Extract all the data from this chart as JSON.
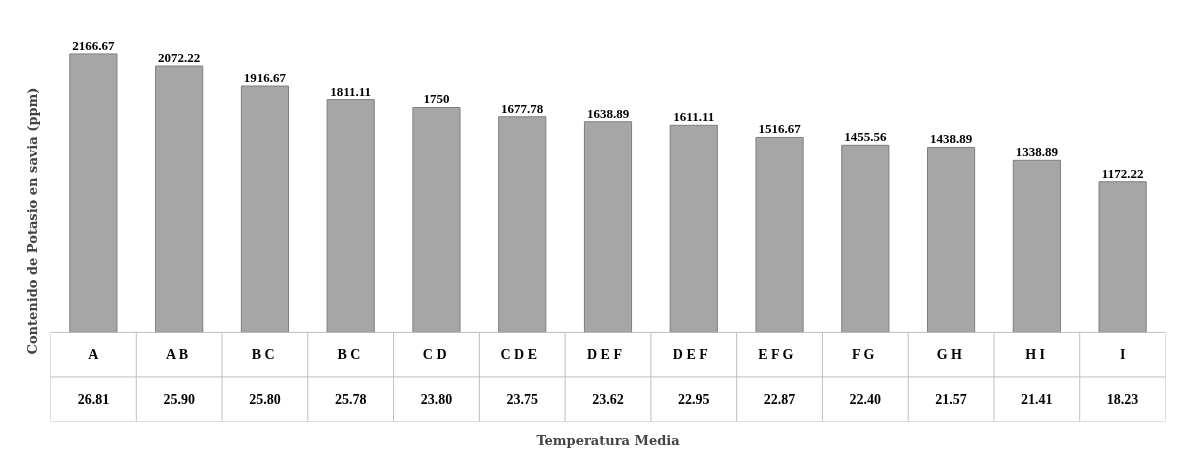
{
  "chart_data": {
    "type": "bar",
    "xlabel": "Temperatura Media",
    "ylabel": "Contenido de Potasio en savia (ppm)",
    "categories": [
      "26.81",
      "25.90",
      "25.80",
      "25.78",
      "23.80",
      "23.75",
      "23.62",
      "22.95",
      "22.87",
      "22.40",
      "21.57",
      "21.41",
      "18.23"
    ],
    "values": [
      2166.67,
      2072.22,
      1916.67,
      1811.11,
      1750,
      1677.78,
      1638.89,
      1611.11,
      1516.67,
      1455.56,
      1438.89,
      1338.89,
      1172.22
    ],
    "color": "#a6a6a6",
    "data_labels": true,
    "annotations": [
      "A",
      "A  B",
      "B  C",
      "B  C",
      "C  D",
      "C  D  E",
      "D  E  F",
      "D  E  F",
      "E  F  G",
      "F  G",
      "G  H",
      "H  I",
      "I"
    ]
  }
}
